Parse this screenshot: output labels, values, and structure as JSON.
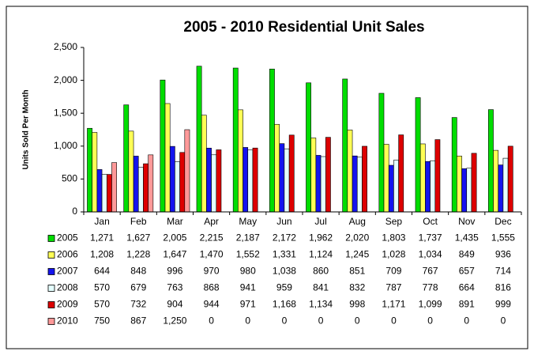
{
  "chart_data": {
    "type": "bar",
    "title": "2005 - 2010 Residential Unit Sales",
    "y_label": "Units Sold Per Month",
    "categories": [
      "Jan",
      "Feb",
      "Mar",
      "Apr",
      "May",
      "Jun",
      "Jul",
      "Aug",
      "Sep",
      "Oct",
      "Nov",
      "Dec"
    ],
    "ylim": [
      0,
      2500
    ],
    "yticks": [
      0,
      500,
      {
        "value": 1000,
        "label": "1,000"
      },
      {
        "value": 1500,
        "label": "1,500"
      },
      {
        "value": 2000,
        "label": "2,000"
      },
      {
        "value": 2500,
        "label": "2,500"
      }
    ],
    "data_table": true,
    "series": [
      {
        "name": "2005",
        "color": "#00dd00",
        "values": [
          1271,
          1627,
          2005,
          2215,
          2187,
          2172,
          1962,
          2020,
          1803,
          1737,
          1435,
          1555
        ],
        "value_labels": [
          "1,271",
          "1,627",
          "2,005",
          "2,215",
          "2,187",
          "2,172",
          "1,962",
          "2,020",
          "1,803",
          "1,737",
          "1,435",
          "1,555"
        ]
      },
      {
        "name": "2006",
        "color": "#ffff55",
        "values": [
          1208,
          1228,
          1647,
          1470,
          1552,
          1331,
          1124,
          1245,
          1028,
          1034,
          849,
          936
        ],
        "value_labels": [
          "1,208",
          "1,228",
          "1,647",
          "1,470",
          "1,552",
          "1,331",
          "1,124",
          "1,245",
          "1,028",
          "1,034",
          "849",
          "936"
        ]
      },
      {
        "name": "2007",
        "color": "#1414ee",
        "values": [
          644,
          848,
          996,
          970,
          980,
          1038,
          860,
          851,
          709,
          767,
          657,
          714
        ],
        "value_labels": [
          "644",
          "848",
          "996",
          "970",
          "980",
          "1,038",
          "860",
          "851",
          "709",
          "767",
          "657",
          "714"
        ]
      },
      {
        "name": "2008",
        "color": "#e4ffff",
        "values": [
          570,
          679,
          763,
          868,
          941,
          959,
          841,
          832,
          787,
          778,
          664,
          816
        ],
        "value_labels": [
          "570",
          "679",
          "763",
          "868",
          "941",
          "959",
          "841",
          "832",
          "787",
          "778",
          "664",
          "816"
        ]
      },
      {
        "name": "2009",
        "color": "#dd0000",
        "values": [
          570,
          732,
          904,
          944,
          971,
          1168,
          1134,
          998,
          1171,
          1099,
          891,
          999
        ],
        "value_labels": [
          "570",
          "732",
          "904",
          "944",
          "971",
          "1,168",
          "1,134",
          "998",
          "1,171",
          "1,099",
          "891",
          "999"
        ]
      },
      {
        "name": "2010",
        "color": "#ff9999",
        "values": [
          750,
          867,
          1250,
          0,
          0,
          0,
          0,
          0,
          0,
          0,
          0,
          0
        ],
        "value_labels": [
          "750",
          "867",
          "1,250",
          "0",
          "0",
          "0",
          "0",
          "0",
          "0",
          "0",
          "0",
          "0"
        ]
      }
    ]
  }
}
